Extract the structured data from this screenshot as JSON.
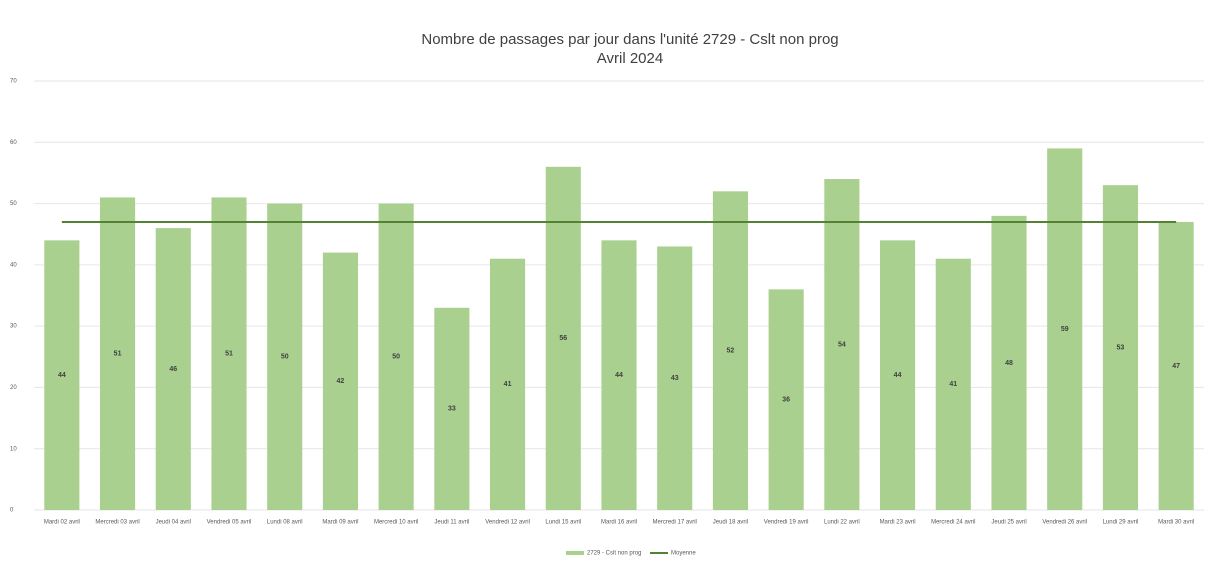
{
  "chart_data": {
    "type": "bar",
    "title": "Nombre de passages par jour dans l'unité 2729 - Cslt non prog",
    "subtitle": "Avril 2024",
    "categories": [
      "Mardi 02 avril",
      "Mercredi 03 avril",
      "Jeudi 04 avril",
      "Vendredi 05 avril",
      "Lundi 08 avril",
      "Mardi 09 avril",
      "Mercredi 10 avril",
      "Jeudi 11 avril",
      "Vendredi 12 avril",
      "Lundi 15 avril",
      "Mardi 16 avril",
      "Mercredi 17 avril",
      "Jeudi 18 avril",
      "Vendredi 19 avril",
      "Lundi 22 avril",
      "Mardi 23 avril",
      "Mercredi 24 avril",
      "Jeudi 25 avril",
      "Vendredi 26 avril",
      "Lundi 29 avril",
      "Mardi 30 avril"
    ],
    "series": [
      {
        "name": "2729 - Cslt non prog",
        "type": "bar",
        "color": "#a9d08e",
        "values": [
          44,
          51,
          46,
          51,
          50,
          42,
          50,
          33,
          41,
          56,
          44,
          43,
          52,
          36,
          54,
          44,
          41,
          48,
          59,
          53,
          47
        ]
      },
      {
        "name": "Moyenne",
        "type": "line",
        "color": "#548235",
        "values": [
          47,
          47,
          47,
          47,
          47,
          47,
          47,
          47,
          47,
          47,
          47,
          47,
          47,
          47,
          47,
          47,
          47,
          47,
          47,
          47,
          47
        ]
      }
    ],
    "ylim": [
      0,
      70
    ],
    "yticks": [
      0,
      10,
      20,
      30,
      40,
      50,
      60,
      70
    ],
    "grid": true,
    "legend": "bottom"
  }
}
